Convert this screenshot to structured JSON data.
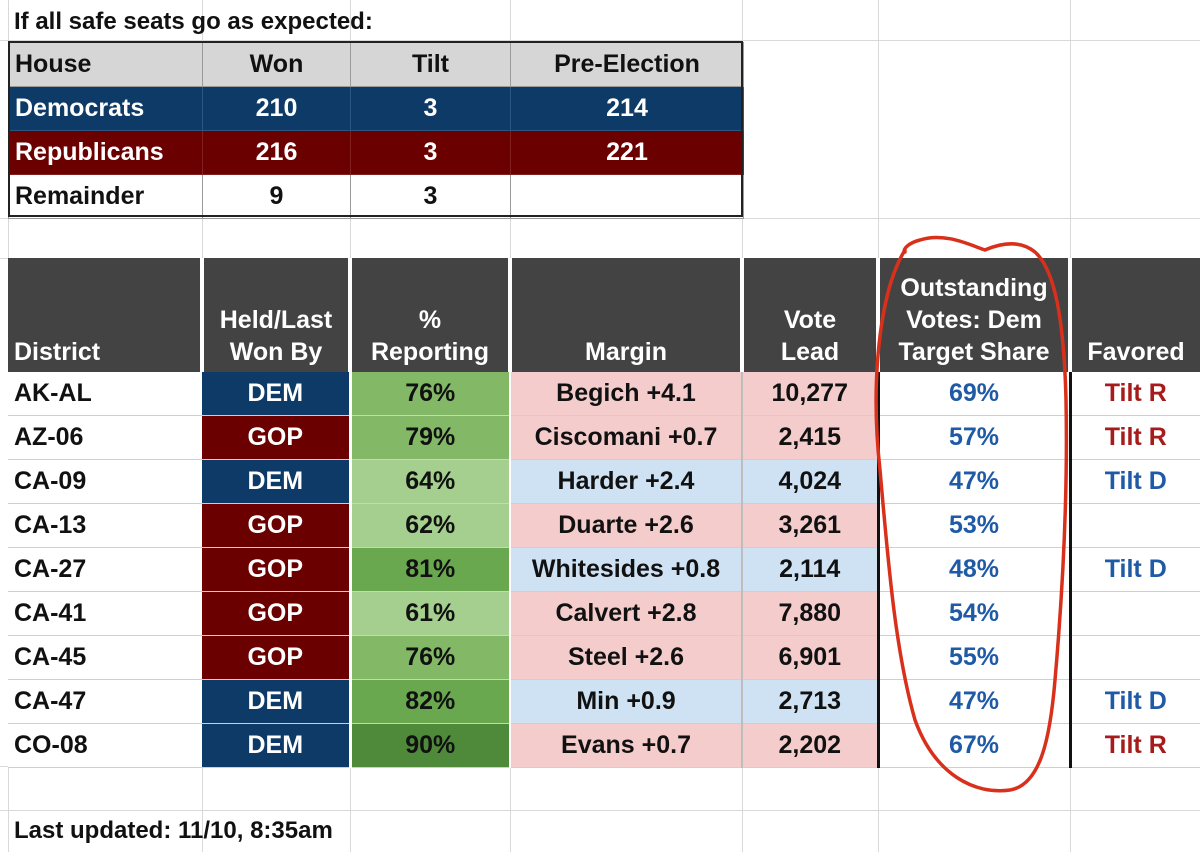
{
  "title": "If all safe seats go as expected:",
  "summary": {
    "headers": [
      "House",
      "Won",
      "Tilt",
      "Pre-Election"
    ],
    "rows": [
      {
        "label": "Democrats",
        "won": "210",
        "tilt": "3",
        "pre": "214",
        "party": "dem"
      },
      {
        "label": "Republicans",
        "won": "216",
        "tilt": "3",
        "pre": "221",
        "party": "rep"
      },
      {
        "label": "Remainder",
        "won": "9",
        "tilt": "3",
        "pre": "",
        "party": "rem"
      }
    ]
  },
  "table": {
    "headers": {
      "district": "District",
      "held": [
        "Held/Last",
        "Won By"
      ],
      "reporting": [
        "%",
        "Reporting"
      ],
      "margin": "Margin",
      "lead": [
        "Vote",
        "Lead"
      ],
      "target": [
        "Outstanding",
        "Votes: Dem",
        "Target Share"
      ],
      "favored": "Favored"
    },
    "rows": [
      {
        "district": "AK-AL",
        "held": "DEM",
        "reporting": "76%",
        "margin": "Begich +4.1",
        "lead": "10,277",
        "target": "69%",
        "favored": "Tilt R",
        "lean": "rep"
      },
      {
        "district": "AZ-06",
        "held": "GOP",
        "reporting": "79%",
        "margin": "Ciscomani +0.7",
        "lead": "2,415",
        "target": "57%",
        "favored": "Tilt R",
        "lean": "rep"
      },
      {
        "district": "CA-09",
        "held": "DEM",
        "reporting": "64%",
        "margin": "Harder +2.4",
        "lead": "4,024",
        "target": "47%",
        "favored": "Tilt D",
        "lean": "dem"
      },
      {
        "district": "CA-13",
        "held": "GOP",
        "reporting": "62%",
        "margin": "Duarte +2.6",
        "lead": "3,261",
        "target": "53%",
        "favored": "",
        "lean": "rep"
      },
      {
        "district": "CA-27",
        "held": "GOP",
        "reporting": "81%",
        "margin": "Whitesides +0.8",
        "lead": "2,114",
        "target": "48%",
        "favored": "Tilt D",
        "lean": "dem"
      },
      {
        "district": "CA-41",
        "held": "GOP",
        "reporting": "61%",
        "margin": "Calvert +2.8",
        "lead": "7,880",
        "target": "54%",
        "favored": "",
        "lean": "rep"
      },
      {
        "district": "CA-45",
        "held": "GOP",
        "reporting": "76%",
        "margin": "Steel +2.6",
        "lead": "6,901",
        "target": "55%",
        "favored": "",
        "lean": "rep"
      },
      {
        "district": "CA-47",
        "held": "DEM",
        "reporting": "82%",
        "margin": "Min +0.9",
        "lead": "2,713",
        "target": "47%",
        "favored": "Tilt D",
        "lean": "dem"
      },
      {
        "district": "CO-08",
        "held": "DEM",
        "reporting": "90%",
        "margin": "Evans +0.7",
        "lead": "2,202",
        "target": "67%",
        "favored": "Tilt R",
        "lean": "rep"
      }
    ]
  },
  "footer": "Last updated: 11/10, 8:35am",
  "colors": {
    "dem": "#0d3a66",
    "rep": "#6b0000",
    "header_gray": "#434343",
    "pink": "#f4cccc",
    "light_blue": "#cfe2f3",
    "annotation_red": "#d9301c"
  }
}
